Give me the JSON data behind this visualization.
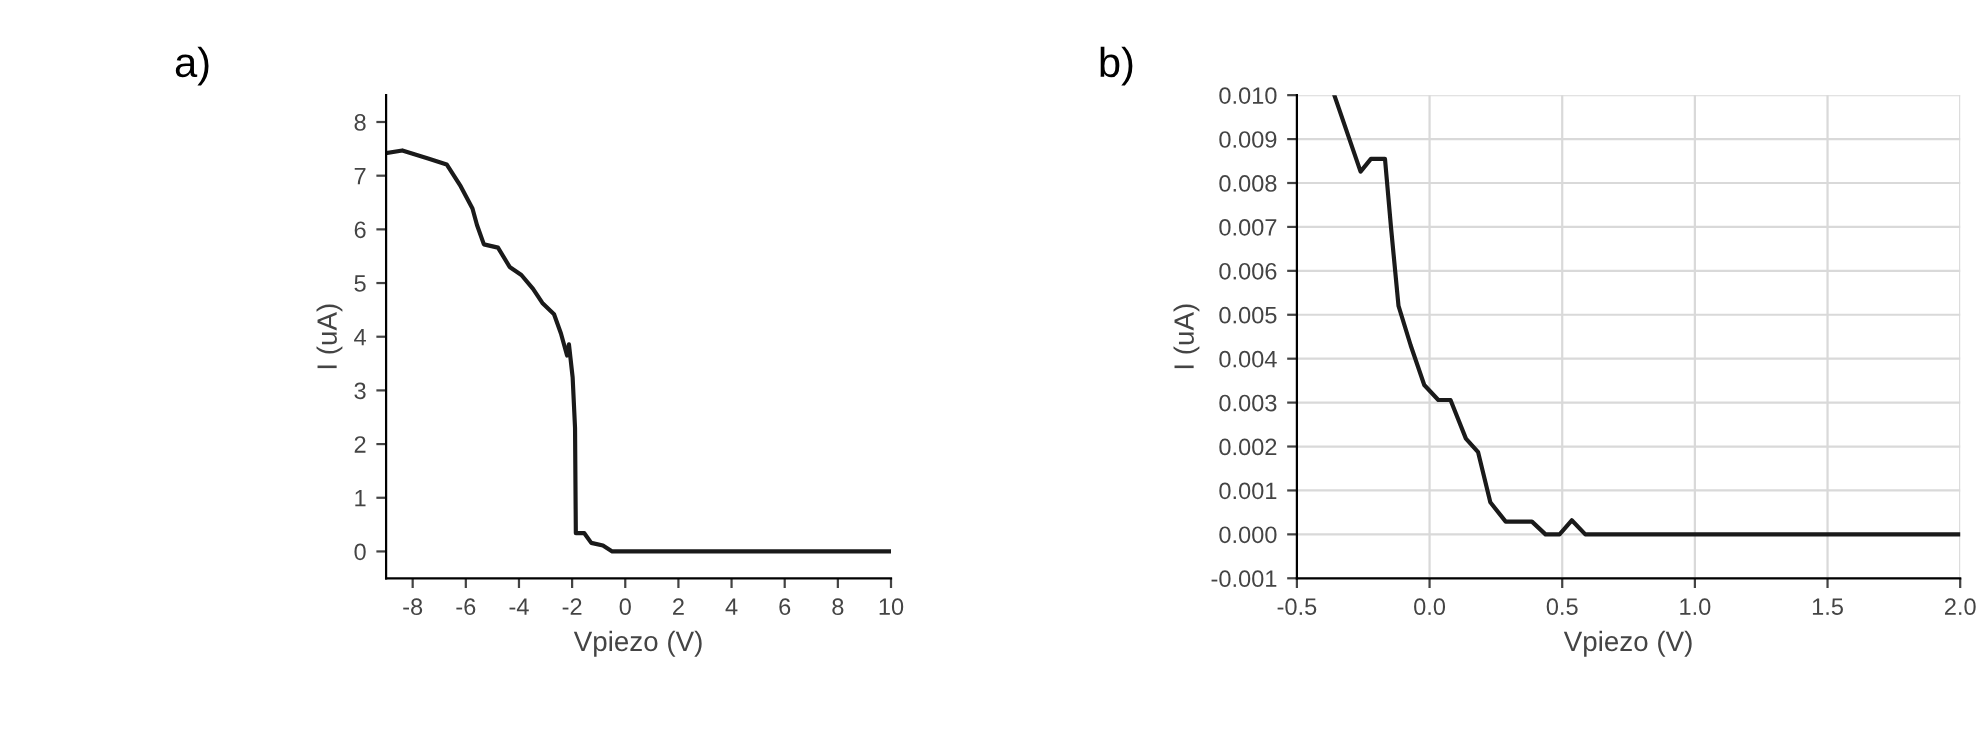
{
  "chart_data": [
    {
      "type": "line",
      "title": "a)",
      "xlabel": "Vpiezo (V)",
      "ylabel": "I (uA)",
      "grid": false,
      "legend": false,
      "xlim": [
        -9,
        10
      ],
      "xticks": [
        -8,
        -6,
        -4,
        -2,
        0,
        2,
        4,
        6,
        8,
        10
      ],
      "ylim": [
        -0.5,
        8.5
      ],
      "yticks": [
        0,
        1,
        2,
        3,
        4,
        5,
        6,
        7,
        8
      ],
      "series": [
        {
          "color": "#1a1a1a",
          "x": [
            -9,
            -8.39,
            -7.42,
            -6.72,
            -6.19,
            -5.75,
            -5.58,
            -5.32,
            -4.79,
            -4.35,
            -3.91,
            -3.47,
            -3.12,
            -2.68,
            -2.42,
            -2.19,
            -2.12,
            -1.98,
            -1.89,
            -1.86,
            -1.54,
            -1.28,
            -0.84,
            -0.49,
            10
          ],
          "values": [
            7.42,
            7.47,
            7.32,
            7.21,
            6.8,
            6.39,
            6.08,
            5.72,
            5.66,
            5.3,
            5.15,
            4.89,
            4.63,
            4.42,
            4.06,
            3.65,
            3.86,
            3.24,
            2.3,
            0.34,
            0.34,
            0.16,
            0.11,
            0,
            0
          ]
        }
      ]
    },
    {
      "type": "line",
      "title": "b)",
      "xlabel": "Vpiezo (V)",
      "ylabel": "I (uA)",
      "grid": true,
      "legend": false,
      "xlim": [
        -0.5,
        2.0
      ],
      "xticks": [
        {
          "value": -0.5,
          "label": "-0.5"
        },
        {
          "value": 0,
          "label": "0.0"
        },
        {
          "value": 0.5,
          "label": "0.5"
        },
        {
          "value": 1.0,
          "label": "1.0"
        },
        {
          "value": 1.5,
          "label": "1.5"
        },
        {
          "value": 2.0,
          "label": "2.0"
        }
      ],
      "ylim": [
        -0.001,
        0.01
      ],
      "yticks": [
        {
          "value": -0.001,
          "label": "-0.001"
        },
        {
          "value": 0,
          "label": "0.000"
        },
        {
          "value": 0.001,
          "label": "0.001"
        },
        {
          "value": 0.002,
          "label": "0.002"
        },
        {
          "value": 0.003,
          "label": "0.003"
        },
        {
          "value": 0.004,
          "label": "0.004"
        },
        {
          "value": 0.005,
          "label": "0.005"
        },
        {
          "value": 0.006,
          "label": "0.006"
        },
        {
          "value": 0.007,
          "label": "0.007"
        },
        {
          "value": 0.008,
          "label": "0.008"
        },
        {
          "value": 0.009,
          "label": "0.009"
        },
        {
          "value": 0.01,
          "label": "0.010"
        }
      ],
      "series": [
        {
          "color": "#1a1a1a",
          "x": [
            -0.359,
            -0.26,
            -0.221,
            -0.168,
            -0.145,
            -0.117,
            -0.071,
            -0.02,
            0.033,
            0.079,
            0.137,
            0.183,
            0.229,
            0.287,
            0.386,
            0.437,
            0.49,
            0.536,
            0.587,
            2.0
          ],
          "values": [
            0.01,
            0.00826,
            0.00855,
            0.00855,
            0.00697,
            0.0052,
            0.0043,
            0.0034,
            0.00306,
            0.00306,
            0.00218,
            0.00187,
            0.00073,
            0.00029,
            0.00029,
            0,
            0,
            0.00032,
            0,
            0
          ]
        }
      ]
    }
  ]
}
